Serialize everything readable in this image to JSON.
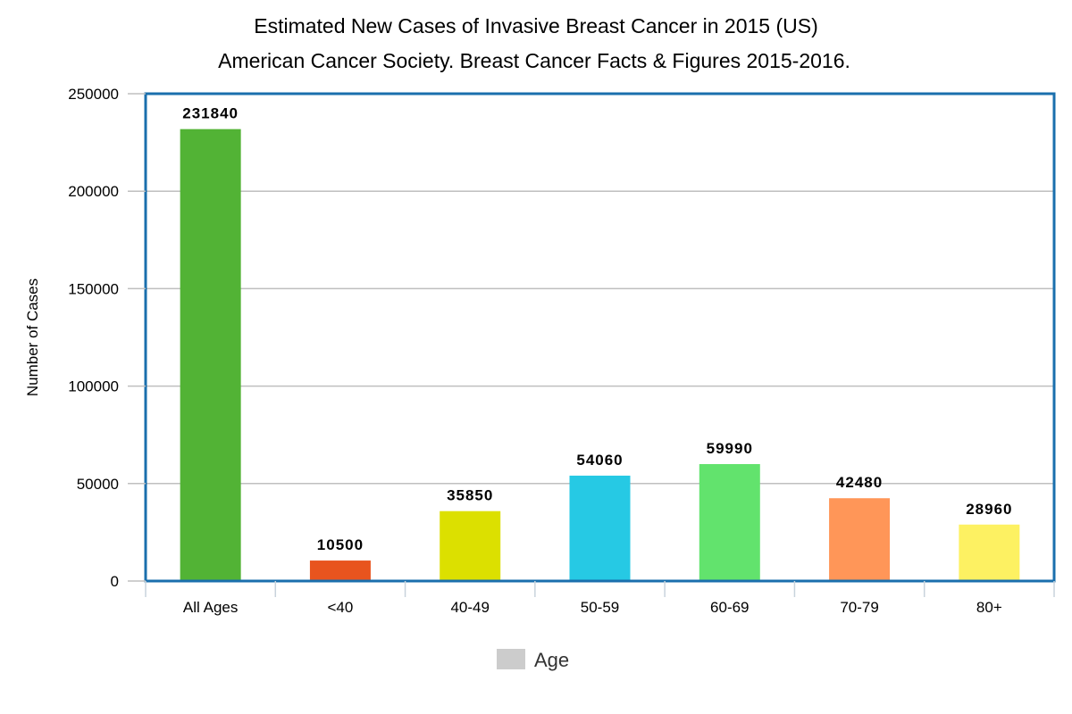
{
  "chart_data": {
    "type": "bar",
    "title": "Estimated New Cases of Invasive Breast Cancer in 2015 (US)",
    "subtitle": "American Cancer Society. Breast Cancer Facts & Figures 2015-2016.",
    "xlabel": "",
    "ylabel": "Number of Cases",
    "ylim": [
      0,
      250000
    ],
    "yticks": [
      0,
      50000,
      100000,
      150000,
      200000,
      250000
    ],
    "ytick_labels": [
      "0",
      "50000",
      "100000",
      "150000",
      "200000",
      "250000"
    ],
    "grid": true,
    "legend_position": "bottom-center",
    "legend": [
      {
        "name": "Age",
        "color": "#cccccc"
      }
    ],
    "categories": [
      "All Ages",
      "<40",
      "40-49",
      "50-59",
      "60-69",
      "70-79",
      "80+"
    ],
    "values": [
      231840,
      10500,
      35850,
      54060,
      59990,
      42480,
      28960
    ],
    "value_labels": [
      "231840",
      "10500",
      "35850",
      "54060",
      "59990",
      "42480",
      "28960"
    ],
    "colors": [
      "#52b335",
      "#e8541e",
      "#dce000",
      "#26c9e4",
      "#62e36d",
      "#ff9658",
      "#fdf162"
    ],
    "plot_border_color": "#1a6fad",
    "grid_color": "#bfbfbf"
  }
}
